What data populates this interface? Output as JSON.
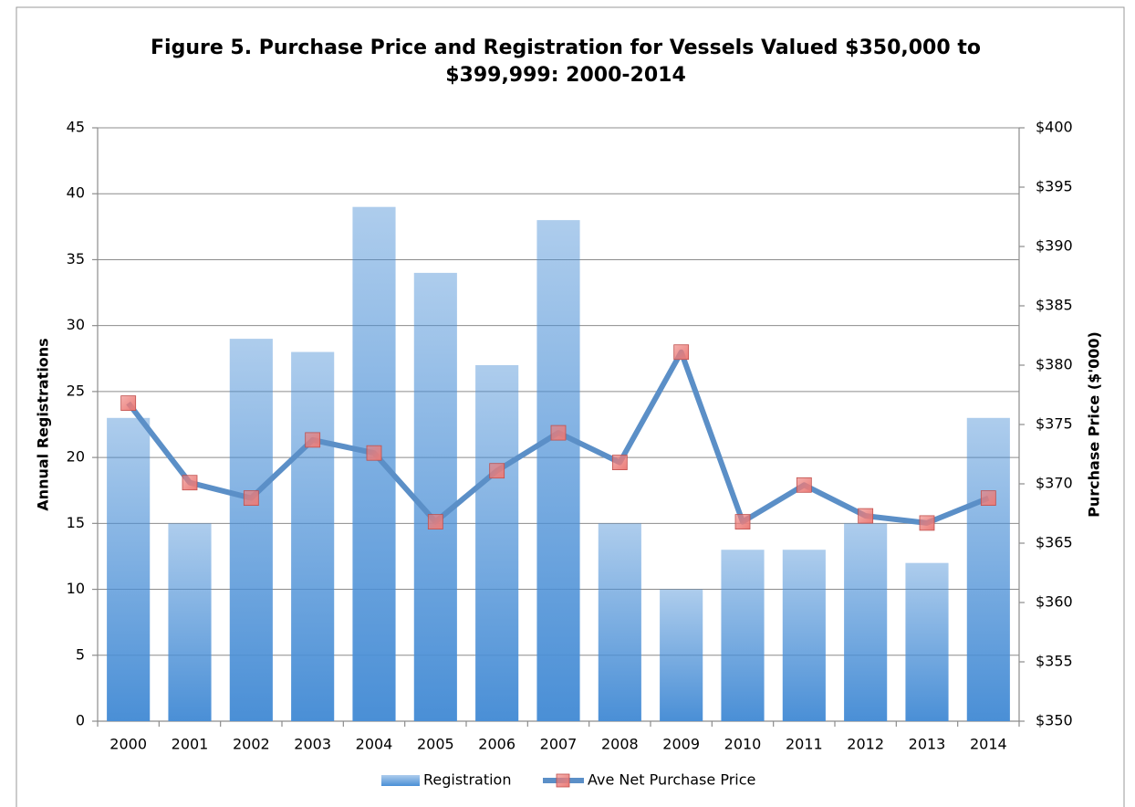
{
  "chart_data": {
    "type": "bar-line",
    "title": "Figure 5. Purchase Price and Registration for Vessels Valued $350,000 to $399,999: 2000-2014",
    "y_label": "Annual Registrations",
    "y2_label": "Purchase Price ($'000)",
    "categories": [
      "2000",
      "2001",
      "2002",
      "2003",
      "2004",
      "2005",
      "2006",
      "2007",
      "2008",
      "2009",
      "2010",
      "2011",
      "2012",
      "2013",
      "2014"
    ],
    "series": [
      {
        "name": "Registration",
        "type": "bar",
        "color": "#4a8fd6",
        "values": [
          23,
          15,
          29,
          28,
          39,
          34,
          27,
          38,
          15,
          10,
          13,
          13,
          15,
          12,
          23
        ]
      },
      {
        "name": "Ave Net Purchase Price",
        "type": "line",
        "axis": "y2",
        "color": "#5b8fc7",
        "marker_color": "#ec7c78",
        "values": [
          376.8,
          370.1,
          368.8,
          373.7,
          372.6,
          366.8,
          371.1,
          374.3,
          371.8,
          381.1,
          366.8,
          369.9,
          367.3,
          366.7,
          368.8
        ]
      }
    ],
    "ylim": [
      0,
      45
    ],
    "yticks": [
      0,
      5,
      10,
      15,
      20,
      25,
      30,
      35,
      40,
      45
    ],
    "y2lim": [
      350,
      400
    ],
    "y2ticks": [
      {
        "value": 350,
        "label": "$350"
      },
      {
        "value": 355,
        "label": "$355"
      },
      {
        "value": 360,
        "label": "$360"
      },
      {
        "value": 365,
        "label": "$365"
      },
      {
        "value": 370,
        "label": "$370"
      },
      {
        "value": 375,
        "label": "$375"
      },
      {
        "value": 380,
        "label": "$380"
      },
      {
        "value": 385,
        "label": "$385"
      },
      {
        "value": 390,
        "label": "$390"
      },
      {
        "value": 395,
        "label": "$395"
      },
      {
        "value": 400,
        "label": "$400"
      }
    ],
    "grid": true,
    "legend": "bottom"
  }
}
